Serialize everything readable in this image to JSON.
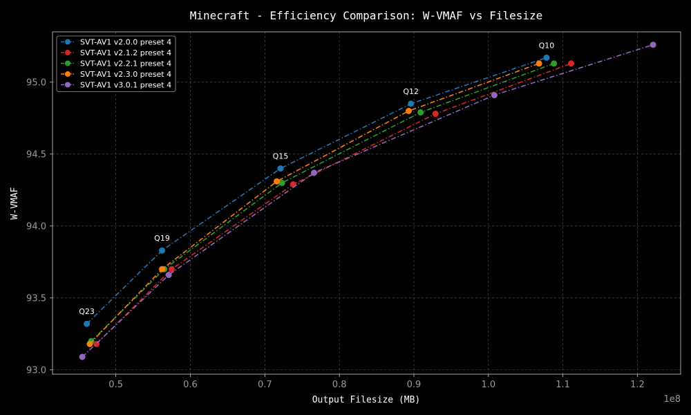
{
  "chart_data": {
    "type": "line",
    "title": "Minecraft - Efficiency Comparison: W-VMAF vs Filesize",
    "xlabel": "Output Filesize (MB)",
    "ylabel": "W-VMAF",
    "x_offset_label": "1e8",
    "xlim": [
      0.415,
      1.258
    ],
    "ylim": [
      92.97,
      95.35
    ],
    "x_ticks": [
      0.5,
      0.6,
      0.7,
      0.8,
      0.9,
      1.0,
      1.1,
      1.2
    ],
    "x_tick_labels": [
      "0.5",
      "0.6",
      "0.7",
      "0.8",
      "0.9",
      "1.0",
      "1.1",
      "1.2"
    ],
    "y_ticks": [
      93.0,
      93.5,
      94.0,
      94.5,
      95.0
    ],
    "y_tick_labels": [
      "93.0",
      "93.5",
      "94.0",
      "94.5",
      "95.0"
    ],
    "grid": true,
    "legend_position": "top-left",
    "series": [
      {
        "name": "SVT-AV1 v2.0.0 preset 4",
        "color": "#1f77b4",
        "x": [
          0.461,
          0.562,
          0.721,
          0.896,
          1.078
        ],
        "y": [
          93.32,
          93.83,
          94.4,
          94.85,
          95.17
        ]
      },
      {
        "name": "SVT-AV1 v2.1.2 preset 4",
        "color": "#d62728",
        "x": [
          0.474,
          0.575,
          0.738,
          0.929,
          1.111
        ],
        "y": [
          93.18,
          93.7,
          94.29,
          94.78,
          95.13
        ]
      },
      {
        "name": "SVT-AV1 v2.2.1 preset 4",
        "color": "#2ca02c",
        "x": [
          0.467,
          0.565,
          0.723,
          0.909,
          1.088
        ],
        "y": [
          93.2,
          93.7,
          94.3,
          94.79,
          95.13
        ]
      },
      {
        "name": "SVT-AV1 v2.3.0 preset 4",
        "color": "#ff7f0e",
        "x": [
          0.465,
          0.562,
          0.716,
          0.893,
          1.068
        ],
        "y": [
          93.18,
          93.7,
          94.31,
          94.8,
          95.13
        ]
      },
      {
        "name": "SVT-AV1 v3.0.1 preset 4",
        "color": "#9467bd",
        "x": [
          0.455,
          0.571,
          0.766,
          1.008,
          1.221
        ],
        "y": [
          93.09,
          93.66,
          94.37,
          94.91,
          95.26
        ]
      }
    ],
    "annotations": [
      {
        "text": "Q23",
        "x": 0.461,
        "y": 93.32
      },
      {
        "text": "Q19",
        "x": 0.562,
        "y": 93.83
      },
      {
        "text": "Q15",
        "x": 0.721,
        "y": 94.4
      },
      {
        "text": "Q12",
        "x": 0.896,
        "y": 94.85
      },
      {
        "text": "Q10",
        "x": 1.078,
        "y": 95.17
      }
    ]
  }
}
